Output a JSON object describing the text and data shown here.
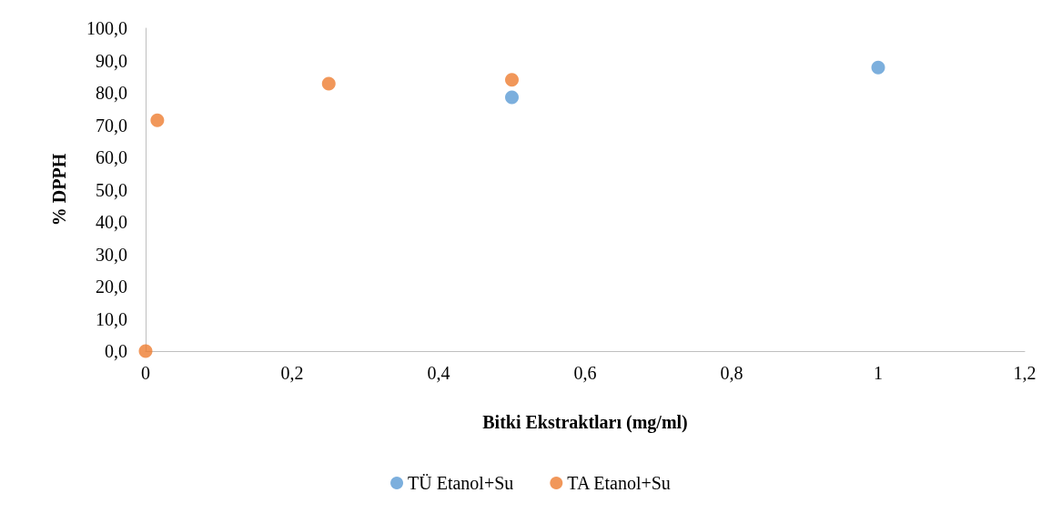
{
  "chart_data": {
    "type": "scatter",
    "xlabel": "Bitki Ekstraktları (mg/ml)",
    "ylabel": "% DPPH",
    "xlim": [
      0,
      1.2
    ],
    "xticks": [
      {
        "value": 0,
        "label": "0"
      },
      {
        "value": 0.2,
        "label": "0,2"
      },
      {
        "value": 0.4,
        "label": "0,4"
      },
      {
        "value": 0.6,
        "label": "0,6"
      },
      {
        "value": 0.8,
        "label": "0,8"
      },
      {
        "value": 1,
        "label": "1"
      },
      {
        "value": 1.2,
        "label": "1,2"
      }
    ],
    "ylim": [
      0,
      100
    ],
    "yticks": [
      {
        "value": 0,
        "label": "0,0"
      },
      {
        "value": 10,
        "label": "10,0"
      },
      {
        "value": 20,
        "label": "20,0"
      },
      {
        "value": 30,
        "label": "30,0"
      },
      {
        "value": 40,
        "label": "40,0"
      },
      {
        "value": 50,
        "label": "50,0"
      },
      {
        "value": 60,
        "label": "60,0"
      },
      {
        "value": 70,
        "label": "70,0"
      },
      {
        "value": 80,
        "label": "80,0"
      },
      {
        "value": 90,
        "label": "90,0"
      },
      {
        "value": 100,
        "label": "100,0"
      }
    ],
    "series": [
      {
        "name": "TÜ Etanol+Su",
        "color": "#5b9bd5",
        "x": [
          0.5,
          1
        ],
        "values": [
          78.6,
          87.8
        ]
      },
      {
        "name": "TA Etanol+Su",
        "color": "#ed7d31",
        "x": [
          0,
          0.016,
          0.25,
          0.5
        ],
        "values": [
          0,
          71.5,
          82.8,
          84.0
        ]
      }
    ],
    "marker": "circle",
    "grid": false,
    "legend": "bottom"
  }
}
